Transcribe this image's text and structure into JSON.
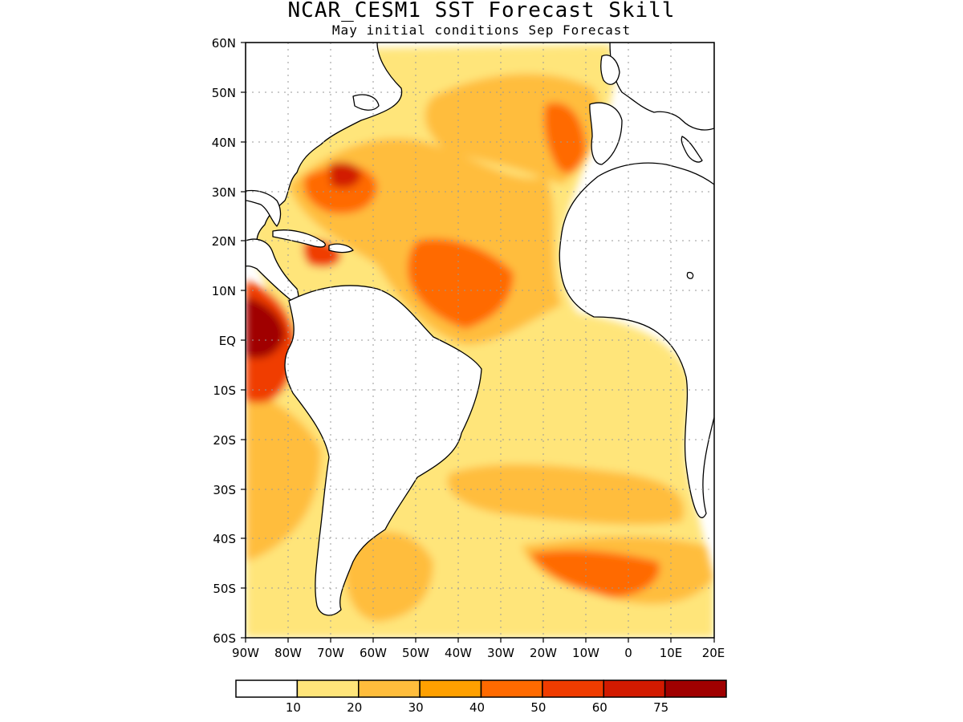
{
  "title": "NCAR_CESM1  SST Forecast Skill",
  "subtitle": "May initial conditions  Sep Forecast",
  "lat_labels": [
    "60N",
    "50N",
    "40N",
    "30N",
    "20N",
    "10N",
    "EQ",
    "10S",
    "20S",
    "30S",
    "40S",
    "50S",
    "60S"
  ],
  "lon_labels": [
    "90W",
    "80W",
    "70W",
    "60W",
    "50W",
    "40W",
    "30W",
    "20W",
    "10W",
    "0",
    "10E",
    "20E"
  ],
  "colorbar": {
    "labels": [
      "10",
      "20",
      "30",
      "40",
      "50",
      "60",
      "75"
    ],
    "colors": [
      "#ffffff",
      "#ffe57a",
      "#ffbd3c",
      "#ffa000",
      "#ff6a00",
      "#f03c00",
      "#d21a00",
      "#a00000"
    ]
  },
  "map_extent": {
    "lon": [
      -90,
      20
    ],
    "lat": [
      -60,
      60
    ]
  },
  "land_color": "#ffffff",
  "coast_color": "#000000"
}
